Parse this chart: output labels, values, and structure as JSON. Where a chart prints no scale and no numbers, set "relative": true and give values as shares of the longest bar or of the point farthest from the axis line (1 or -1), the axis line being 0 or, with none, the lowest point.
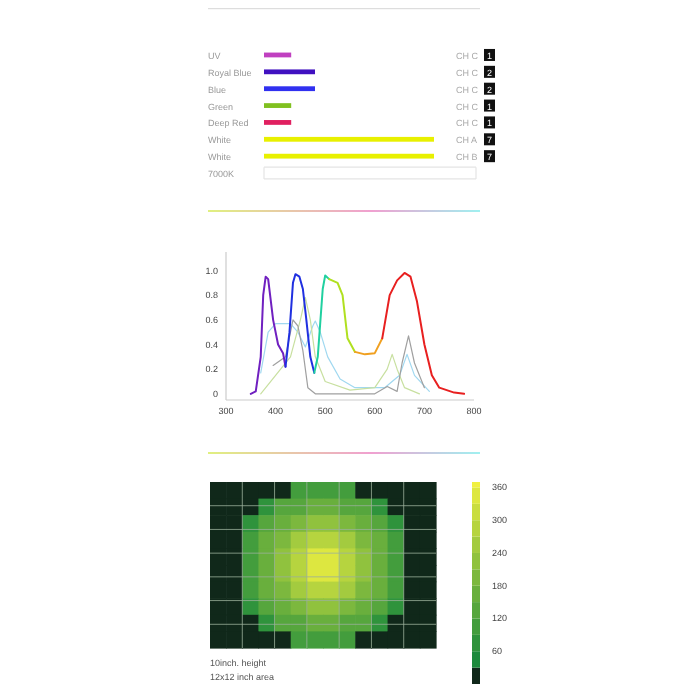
{
  "chart_data": [
    {
      "type": "bar",
      "orientation": "horizontal",
      "relative": true,
      "categories": [
        "UV",
        "Royal Blue",
        "Blue",
        "Green",
        "Deep Red",
        "White",
        "White",
        "7000K"
      ],
      "values": [
        0.16,
        0.3,
        0.3,
        0.16,
        0.16,
        1,
        1,
        null
      ],
      "colors": [
        "#c040c0",
        "#4010c0",
        "#3030f0",
        "#80c020",
        "#e02060",
        "#e8f000",
        "#e8f000",
        null
      ],
      "annotations": [
        "CH C",
        "1",
        "CH C",
        "2",
        "CH C",
        "2",
        "CH C",
        "1",
        "CH C",
        "1",
        "CH A",
        "7",
        "CH B",
        "7"
      ]
    },
    {
      "type": "line",
      "xlim": [
        300,
        800
      ],
      "xticks": [
        300,
        400,
        500,
        600,
        700,
        800
      ],
      "ylim": [
        -0.05,
        1.15
      ],
      "yticks": [
        0,
        {
          "value": 0.2,
          "label": "0.2"
        },
        {
          "value": 0.4,
          "label": "0.4"
        },
        {
          "value": 0.6,
          "label": "0.6"
        },
        {
          "value": 0.8,
          "label": "0.8"
        },
        {
          "value": 1,
          "label": "1.0"
        }
      ],
      "series": [
        {
          "color": "#a0d8f0",
          "x": [
            370,
            385,
            400,
            430,
            445,
            460,
            475,
            480,
            490,
            505,
            530,
            560,
            620,
            650,
            665,
            680,
            710
          ],
          "values": [
            0.17,
            0.5,
            0.57,
            0.57,
            0.5,
            0.38,
            0.55,
            0.59,
            0.5,
            0.3,
            0.12,
            0.05,
            0.05,
            0.15,
            0.32,
            0.15,
            0.02
          ]
        },
        {
          "color": "#c8e0a0",
          "x": [
            370,
            400,
            430,
            450,
            460,
            470,
            480,
            500,
            550,
            600,
            625,
            635,
            645,
            660,
            690
          ],
          "values": [
            0,
            0.15,
            0.3,
            0.6,
            0.78,
            0.6,
            0.3,
            0.1,
            0.03,
            0.05,
            0.2,
            0.32,
            0.2,
            0.05,
            0
          ]
        },
        {
          "color": "#a0a0a0",
          "x": [
            395,
            420,
            435,
            445,
            455,
            465,
            480,
            600,
            625,
            645,
            655,
            668,
            680,
            700
          ],
          "values": [
            0.23,
            0.3,
            0.6,
            0.55,
            0.35,
            0.05,
            0,
            0,
            0.06,
            0.02,
            0.25,
            0.47,
            0.25,
            0.05
          ]
        },
        {
          "color": "#7020c0",
          "x": [
            350,
            360,
            370,
            375,
            380,
            385,
            395,
            405,
            415,
            420
          ],
          "values": [
            0,
            0.02,
            0.3,
            0.8,
            0.95,
            0.93,
            0.6,
            0.4,
            0.33,
            0.22
          ]
        },
        {
          "color": "#2030e0",
          "x": [
            420,
            428,
            435,
            440,
            448,
            455,
            462,
            470,
            478
          ],
          "values": [
            0.22,
            0.5,
            0.9,
            0.97,
            0.95,
            0.85,
            0.6,
            0.3,
            0.17
          ]
        },
        {
          "color": "#20d0a0",
          "x": [
            478,
            485,
            495,
            500,
            508
          ],
          "values": [
            0.17,
            0.3,
            0.85,
            0.96,
            0.93
          ]
        },
        {
          "color": "#b0e020",
          "x": [
            508,
            525,
            535,
            545,
            560
          ],
          "values": [
            0.93,
            0.9,
            0.8,
            0.45,
            0.34
          ]
        },
        {
          "color": "#f0a020",
          "x": [
            560,
            580,
            600,
            615
          ],
          "values": [
            0.34,
            0.32,
            0.33,
            0.45
          ]
        },
        {
          "color": "#e82020",
          "x": [
            615,
            630,
            645,
            660,
            672,
            685,
            700,
            715,
            730,
            760,
            780
          ],
          "values": [
            0.45,
            0.8,
            0.92,
            0.98,
            0.95,
            0.75,
            0.4,
            0.15,
            0.05,
            0.01,
            0
          ]
        }
      ]
    },
    {
      "type": "heatmap",
      "categories": [
        null,
        null,
        null,
        null,
        null,
        null,
        null,
        null,
        null,
        null,
        null,
        null,
        null,
        null
      ],
      "y_categories": [
        null,
        null,
        null,
        null,
        null,
        null,
        null,
        null,
        null,
        null
      ],
      "clim": [
        0,
        370
      ],
      "cticks": [
        60,
        120,
        180,
        240,
        300,
        360
      ],
      "cells": [
        [
          0,
          0,
          0,
          0,
          0,
          90,
          90,
          90,
          90,
          0,
          0,
          0,
          0,
          0
        ],
        [
          0,
          0,
          0,
          60,
          120,
          120,
          150,
          150,
          120,
          120,
          60,
          0,
          0,
          0
        ],
        [
          0,
          0,
          60,
          120,
          150,
          180,
          210,
          210,
          180,
          150,
          120,
          60,
          0,
          0
        ],
        [
          0,
          0,
          90,
          150,
          180,
          240,
          270,
          270,
          240,
          180,
          150,
          90,
          0,
          0
        ],
        [
          0,
          0,
          90,
          150,
          210,
          270,
          330,
          330,
          270,
          210,
          150,
          90,
          0,
          0
        ],
        [
          0,
          0,
          90,
          150,
          210,
          270,
          330,
          330,
          270,
          210,
          150,
          90,
          0,
          0
        ],
        [
          0,
          0,
          90,
          150,
          180,
          240,
          270,
          270,
          240,
          180,
          150,
          90,
          0,
          0
        ],
        [
          0,
          0,
          60,
          120,
          150,
          180,
          210,
          210,
          180,
          150,
          120,
          60,
          0,
          0
        ],
        [
          0,
          0,
          0,
          60,
          120,
          120,
          150,
          150,
          120,
          120,
          60,
          0,
          0,
          0
        ],
        [
          0,
          0,
          0,
          0,
          0,
          90,
          90,
          90,
          90,
          0,
          0,
          0,
          0,
          0
        ]
      ],
      "annotations": [
        "10inch. height",
        "12x12 inch area"
      ]
    }
  ]
}
